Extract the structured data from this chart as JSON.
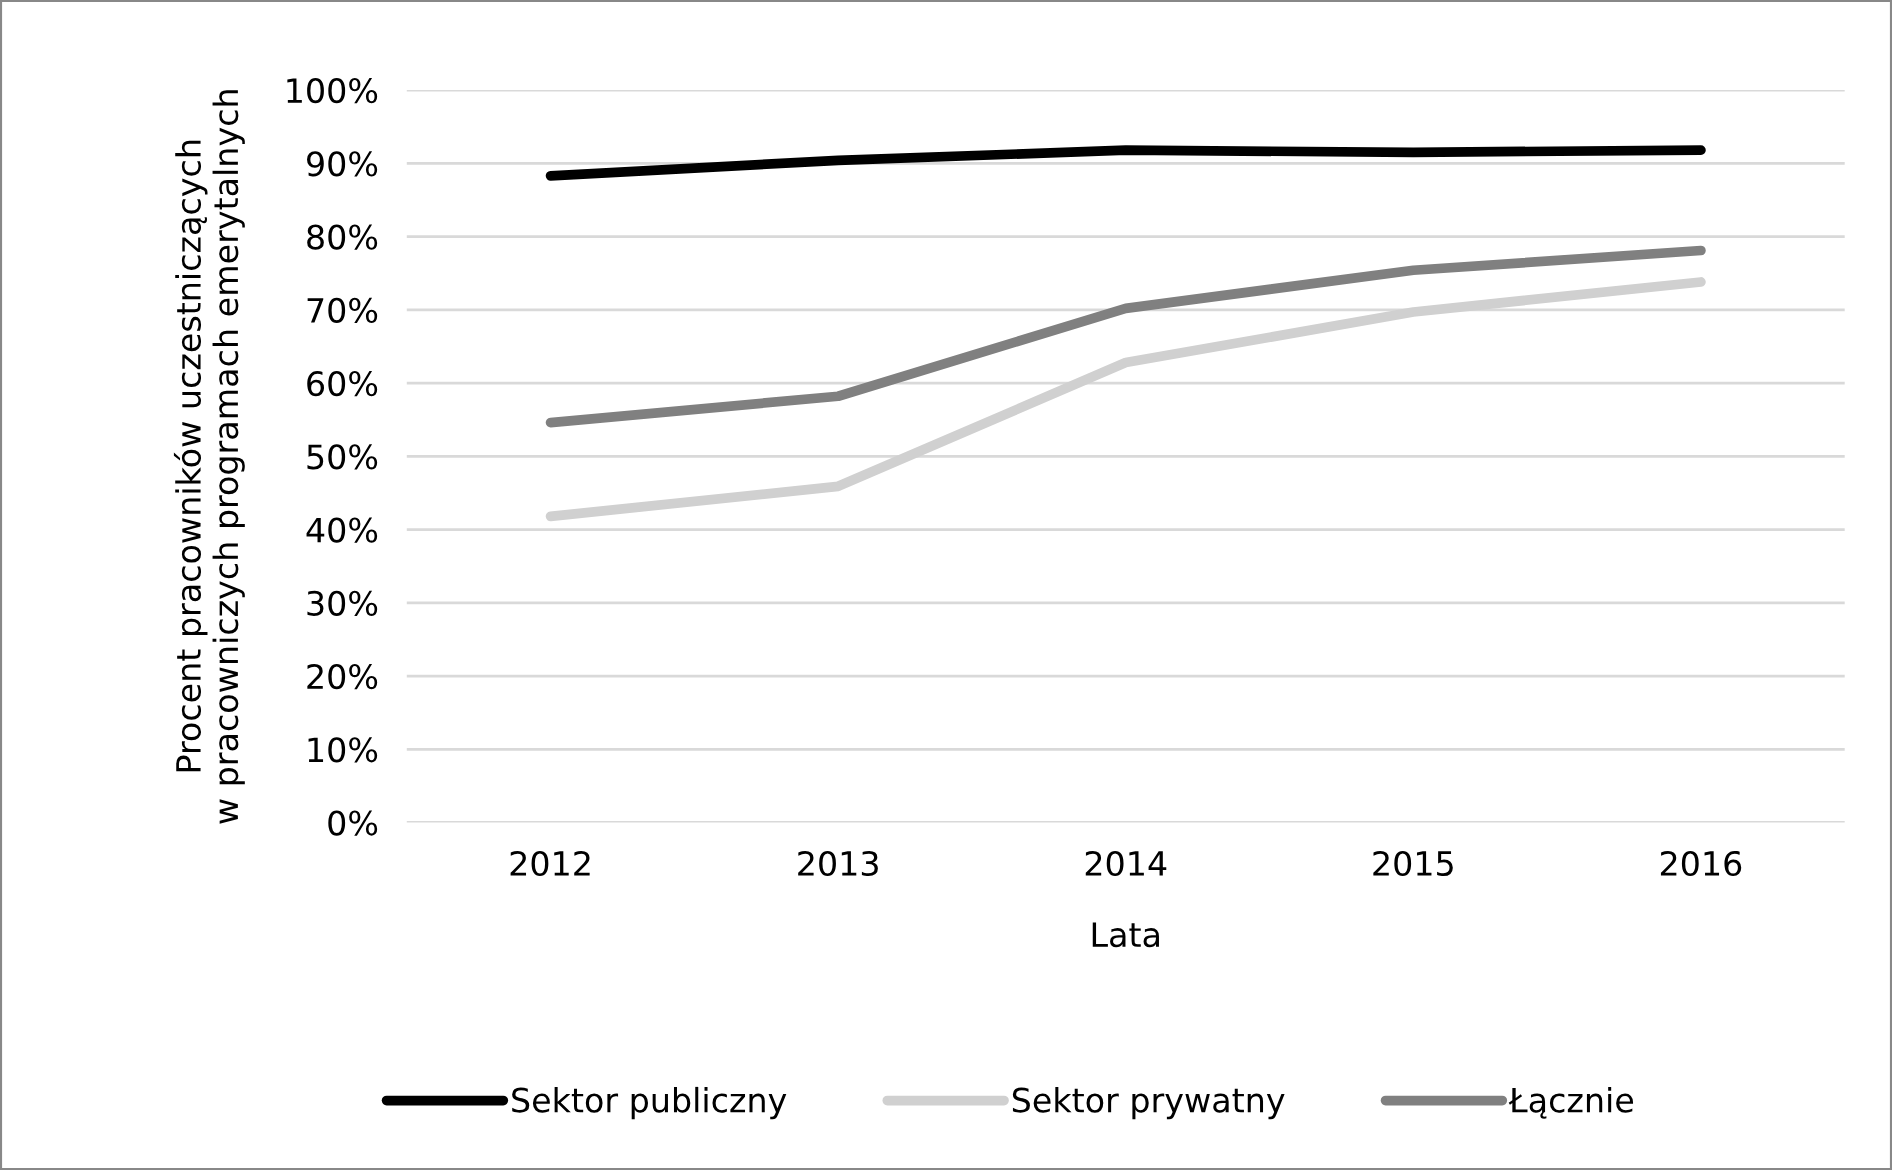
{
  "chart_data": {
    "type": "line",
    "xlabel": "Lata",
    "ylabel": "Procent pracowników uczestniczących\nw pracowniczych programach emerytalnych",
    "categories": [
      "2012",
      "2013",
      "2014",
      "2015",
      "2016"
    ],
    "series": [
      {
        "name": "Sektor publiczny",
        "color": "#000000",
        "values": [
          88.3,
          90.4,
          91.8,
          91.5,
          91.8
        ]
      },
      {
        "name": "Sektor prywatny",
        "color": "#d0d0d0",
        "values": [
          41.8,
          45.9,
          62.8,
          69.7,
          73.8
        ]
      },
      {
        "name": "Łącznie",
        "color": "#808080",
        "values": [
          54.6,
          58.2,
          70.2,
          75.4,
          78.1
        ]
      }
    ],
    "ylim": [
      0,
      100
    ],
    "yticks": [
      {
        "value": 0,
        "label": "0%"
      },
      {
        "value": 10,
        "label": "10%"
      },
      {
        "value": 20,
        "label": "20%"
      },
      {
        "value": 30,
        "label": "30%"
      },
      {
        "value": 40,
        "label": "40%"
      },
      {
        "value": 50,
        "label": "50%"
      },
      {
        "value": 60,
        "label": "60%"
      },
      {
        "value": 70,
        "label": "70%"
      },
      {
        "value": 80,
        "label": "80%"
      },
      {
        "value": 90,
        "label": "90%"
      },
      {
        "value": 100,
        "label": "100%"
      }
    ],
    "grid": "y",
    "legend": "bottom",
    "marker": "none",
    "line_style": "solid"
  }
}
